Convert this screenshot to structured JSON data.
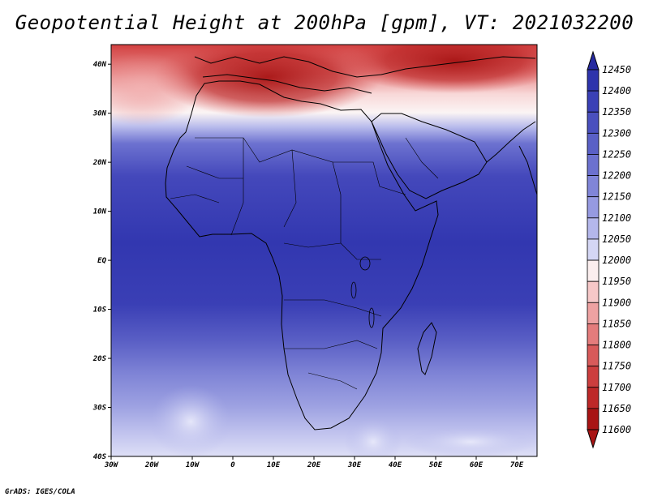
{
  "title": "Geopotential Height at 200hPa [gpm], VT: 2021032200",
  "credit": "GrADS: IGES/COLA",
  "map": {
    "lat_labels": [
      "40N",
      "30N",
      "20N",
      "10N",
      "EQ",
      "10S",
      "20S",
      "30S",
      "40S"
    ],
    "lon_labels": [
      "30W",
      "20W",
      "10W",
      "0",
      "10E",
      "20E",
      "30E",
      "40E",
      "50E",
      "60E",
      "70E"
    ],
    "lat_range": [
      -40,
      44
    ],
    "lon_range": [
      -30,
      75
    ]
  },
  "colorbar": {
    "levels": [
      "12450",
      "12400",
      "12350",
      "12300",
      "12250",
      "12200",
      "12150",
      "12100",
      "12050",
      "12000",
      "11950",
      "11900",
      "11850",
      "11800",
      "11750",
      "11700",
      "11650",
      "11600"
    ],
    "colors": [
      "#262aa0",
      "#2e34ac",
      "#3a40b6",
      "#4a50be",
      "#5a60c6",
      "#6c71cf",
      "#8085d8",
      "#969ae1",
      "#b4b7eb",
      "#d4d6f4",
      "#fbeeee",
      "#f6c8c8",
      "#eea2a2",
      "#e47c7c",
      "#d85a5a",
      "#cc3e3e",
      "#bd2828",
      "#a81414"
    ]
  }
}
